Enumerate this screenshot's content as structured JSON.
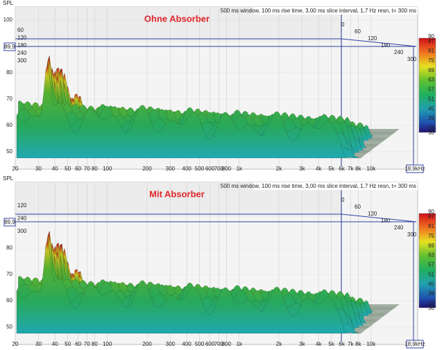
{
  "panels": [
    {
      "title": "Ohne Absorber",
      "settings": "500 ms window, 100 ms rise time, 3,00 ms slice interval, 1,7 Hz resn, t= 300 ms",
      "y_label": "SPL",
      "y_ticks": [
        100,
        80,
        70,
        60,
        50
      ],
      "cursor_level": "89,9",
      "cursor_freq": "18,9kHz",
      "time_ticks_left": [
        "60",
        "120",
        "180",
        "240",
        "300"
      ],
      "time_ticks_right": [
        "0",
        "60",
        "120",
        "180",
        "240",
        "300"
      ],
      "x_ticks": [
        {
          "value": 20,
          "label": "20"
        },
        {
          "value": 30,
          "label": "30"
        },
        {
          "value": 40,
          "label": "40"
        },
        {
          "value": 50,
          "label": "50"
        },
        {
          "value": 60,
          "label": "60"
        },
        {
          "value": 70,
          "label": "70"
        },
        {
          "value": 80,
          "label": "80"
        },
        {
          "value": 100,
          "label": "100"
        },
        {
          "value": 200,
          "label": "200"
        },
        {
          "value": 300,
          "label": "300"
        },
        {
          "value": 400,
          "label": "400"
        },
        {
          "value": 500,
          "label": "500"
        },
        {
          "value": 600,
          "label": "600"
        },
        {
          "value": 700,
          "label": "700"
        },
        {
          "value": 800,
          "label": "800"
        },
        {
          "value": 1000,
          "label": "1k"
        },
        {
          "value": 2000,
          "label": "2k"
        },
        {
          "value": 3000,
          "label": "3k"
        },
        {
          "value": 4000,
          "label": "4k"
        },
        {
          "value": 5000,
          "label": "5k"
        },
        {
          "value": 6000,
          "label": "6k"
        },
        {
          "value": 7000,
          "label": "7k"
        },
        {
          "value": 8000,
          "label": "8k"
        },
        {
          "value": 10000,
          "label": "10k"
        }
      ],
      "colorbar_ticks": [
        90,
        87,
        81,
        75,
        69,
        63,
        57,
        51,
        45,
        39,
        33,
        30
      ]
    },
    {
      "title": "Mit Absorber",
      "settings": "500 ms window, 100 ms rise time, 3,00 ms slice interval, 1,7 Hz resn, t= 300 ms",
      "y_label": "SPL",
      "y_ticks": [
        80,
        70,
        60,
        50
      ],
      "cursor_level": "89,9",
      "cursor_freq": "18,9kHz",
      "time_ticks_left": [
        "120",
        "240",
        "300"
      ],
      "time_ticks_right": [
        "0",
        "60",
        "120",
        "180",
        "240",
        "300"
      ],
      "x_ticks": [
        {
          "value": 20,
          "label": "20"
        },
        {
          "value": 30,
          "label": "30"
        },
        {
          "value": 40,
          "label": "40"
        },
        {
          "value": 50,
          "label": "50"
        },
        {
          "value": 60,
          "label": "60"
        },
        {
          "value": 70,
          "label": "70"
        },
        {
          "value": 80,
          "label": "80"
        },
        {
          "value": 100,
          "label": "100"
        },
        {
          "value": 200,
          "label": "200"
        },
        {
          "value": 300,
          "label": "300"
        },
        {
          "value": 400,
          "label": "400"
        },
        {
          "value": 500,
          "label": "500"
        },
        {
          "value": 600,
          "label": "600"
        },
        {
          "value": 700,
          "label": "700"
        },
        {
          "value": 800,
          "label": "800"
        },
        {
          "value": 1000,
          "label": "1k"
        },
        {
          "value": 2000,
          "label": "2k"
        },
        {
          "value": 3000,
          "label": "3k"
        },
        {
          "value": 4000,
          "label": "4k"
        },
        {
          "value": 5000,
          "label": "5k"
        },
        {
          "value": 6000,
          "label": "6k"
        },
        {
          "value": 7000,
          "label": "7k"
        },
        {
          "value": 8000,
          "label": "8k"
        },
        {
          "value": 10000,
          "label": "10k"
        }
      ],
      "colorbar_ticks": [
        90,
        87,
        81,
        75,
        69,
        63,
        57,
        51,
        45,
        39,
        33,
        30
      ]
    }
  ]
}
